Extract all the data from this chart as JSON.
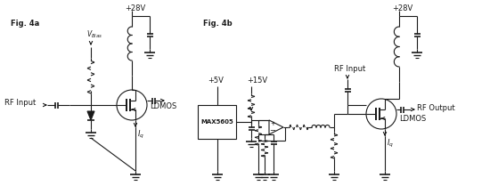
{
  "bg_color": "#ffffff",
  "line_color": "#1a1a1a",
  "fig_width": 5.5,
  "fig_height": 2.09,
  "dpi": 100,
  "labels": {
    "fig4a": "Fig. 4a",
    "fig4b": "Fig. 4b",
    "v28_1": "+28V",
    "v28_2": "+28V",
    "v5": "+5V",
    "v15": "+15V",
    "vbias": "$V_{Bias}$",
    "ldmos1": "LDMOS",
    "ldmos2": "LDMOS",
    "rf_input1": "RF Input",
    "rf_input2": "RF Input",
    "rf_output": "RF Output",
    "iq1": "$I_q$",
    "iq2": "$I_q$",
    "max5605": "MAX5605"
  }
}
